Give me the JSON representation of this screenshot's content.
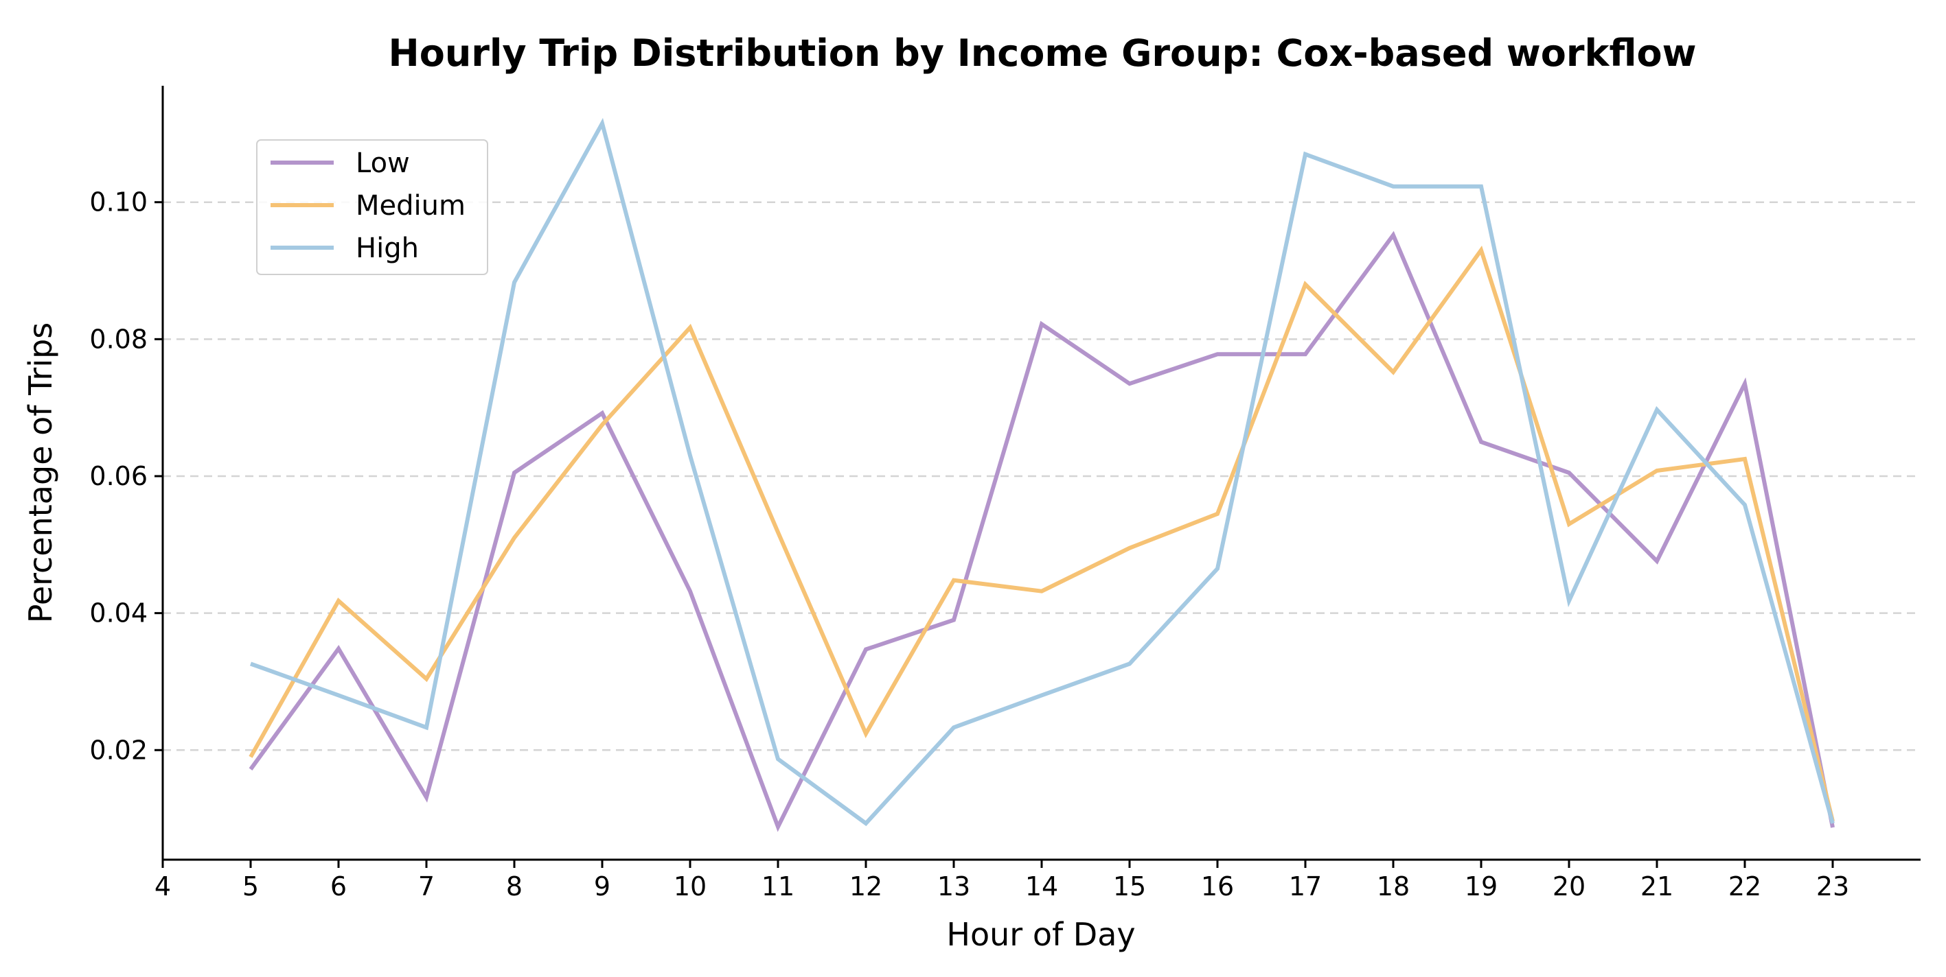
{
  "chart_data": {
    "type": "line",
    "title": "Hourly Trip Distribution by Income Group: Cox-based workflow",
    "xlabel": "Hour of Day",
    "ylabel": "Percentage of Trips",
    "x": [
      5,
      6,
      7,
      8,
      9,
      10,
      11,
      12,
      13,
      14,
      15,
      16,
      17,
      18,
      19,
      20,
      21,
      22,
      23
    ],
    "x_ticks": [
      4,
      5,
      6,
      7,
      8,
      9,
      10,
      11,
      12,
      13,
      14,
      15,
      16,
      17,
      18,
      19,
      20,
      21,
      22,
      23
    ],
    "y_ticks": [
      0.02,
      0.04,
      0.06,
      0.08,
      0.1
    ],
    "y_tick_labels": [
      "0.02",
      "0.04",
      "0.06",
      "0.08",
      "0.10"
    ],
    "xlim": [
      4,
      24
    ],
    "ylim": [
      0.004,
      0.117
    ],
    "grid": "horizontal dashed",
    "legend_position": "top-left",
    "series": [
      {
        "name": "Low",
        "color": "#b394cb",
        "values": [
          0.0172,
          0.0348,
          0.0131,
          0.0605,
          0.0692,
          0.0432,
          0.0088,
          0.0347,
          0.039,
          0.0822,
          0.0735,
          0.0778,
          0.0778,
          0.0952,
          0.065,
          0.0605,
          0.0476,
          0.0735,
          0.0087
        ]
      },
      {
        "name": "Medium",
        "color": "#f6c274",
        "values": [
          0.019,
          0.0418,
          0.0304,
          0.051,
          0.0675,
          0.0817,
          0.0518,
          0.0224,
          0.0448,
          0.0432,
          0.0495,
          0.0545,
          0.088,
          0.0752,
          0.093,
          0.053,
          0.0608,
          0.0625,
          0.0096
        ]
      },
      {
        "name": "High",
        "color": "#a4c9e2",
        "values": [
          0.0326,
          0.028,
          0.0233,
          0.0883,
          0.1115,
          0.063,
          0.0187,
          0.0093,
          0.0233,
          0.028,
          0.0326,
          0.0465,
          0.107,
          0.1023,
          0.1023,
          0.0418,
          0.0697,
          0.0558,
          0.0093
        ]
      }
    ]
  }
}
